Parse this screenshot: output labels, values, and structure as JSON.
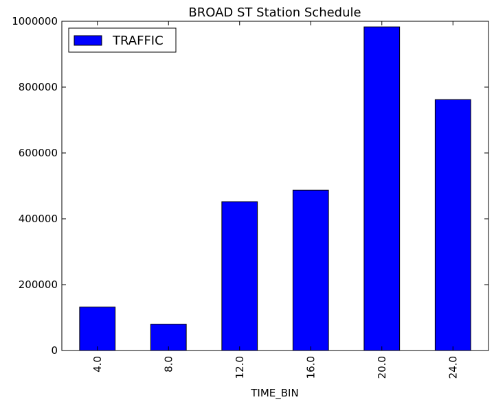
{
  "chart_data": {
    "type": "bar",
    "title": "BROAD ST Station Schedule",
    "xlabel": "TIME_BIN",
    "ylabel": "",
    "categories": [
      "4.0",
      "8.0",
      "12.0",
      "16.0",
      "20.0",
      "24.0"
    ],
    "series": [
      {
        "name": "TRAFFIC",
        "values": [
          132000,
          80000,
          452000,
          487000,
          983000,
          762000
        ],
        "color": "#0000ff"
      }
    ],
    "ylim": [
      0,
      1000000
    ],
    "yticks": [
      0,
      200000,
      400000,
      600000,
      800000,
      1000000
    ],
    "grid": false,
    "legend_position": "top-left",
    "x_tick_rotation": "vertical"
  }
}
